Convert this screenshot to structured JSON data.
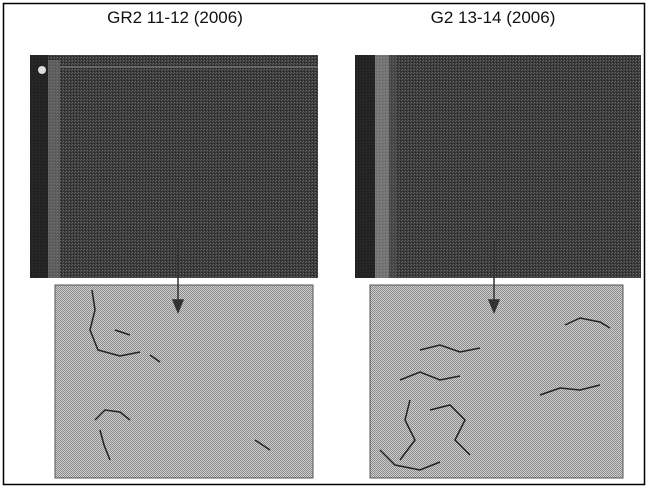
{
  "panels": [
    {
      "title": "GR2 11-12 (2006)"
    },
    {
      "title": "G2 13-14 (2006)"
    }
  ]
}
